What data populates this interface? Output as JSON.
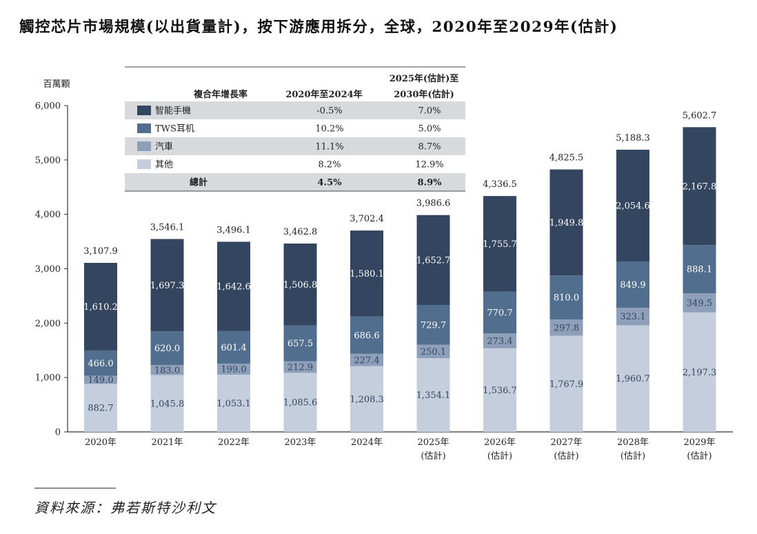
{
  "title": "觸控芯片市場規模(以出貨量計)，按下游應用拆分，全球，2020年至2029年(估計)",
  "source": "資料來源：弗若斯特沙利文",
  "colors": {
    "smartphone": "#33455f",
    "tws": "#526e8f",
    "auto": "#8e9fba",
    "other": "#c4cedc",
    "table_band": "#d7d9dc",
    "axis": "#333333"
  },
  "chart_data": {
    "type": "bar",
    "stacked": true,
    "ylabel": "百萬顆",
    "ylim": [
      0,
      6000
    ],
    "yticks": [
      0,
      1000,
      2000,
      3000,
      4000,
      5000,
      6000
    ],
    "ytick_labels": [
      "0",
      "1,000",
      "2,000",
      "3,000",
      "4,000",
      "5,000",
      "6,000"
    ],
    "categories": [
      [
        "2020年"
      ],
      [
        "2021年"
      ],
      [
        "2022年"
      ],
      [
        "2023年"
      ],
      [
        "2024年"
      ],
      [
        "2025年",
        "(估計)"
      ],
      [
        "2026年",
        "(估計)"
      ],
      [
        "2027年",
        "(估計)"
      ],
      [
        "2028年",
        "(估計)"
      ],
      [
        "2029年",
        "(估計)"
      ]
    ],
    "series": [
      {
        "name": "其他",
        "key": "other",
        "values": [
          882.7,
          1045.8,
          1053.1,
          1085.6,
          1208.3,
          1354.1,
          1536.7,
          1767.9,
          1960.7,
          2197.3
        ],
        "labels": [
          "882.7",
          "1,045.8",
          "1,053.1",
          "1,085.6",
          "1,208.3",
          "1,354.1",
          "1,536.7",
          "1,767.9",
          "1,960.7",
          "2,197.3"
        ]
      },
      {
        "name": "汽車",
        "key": "auto",
        "values": [
          149.0,
          183.0,
          199.0,
          212.9,
          227.4,
          250.1,
          273.4,
          297.8,
          323.1,
          349.5
        ],
        "labels": [
          "149.0",
          "183.0",
          "199.0",
          "212.9",
          "227.4",
          "250.1",
          "273.4",
          "297.8",
          "323.1",
          "349.5"
        ]
      },
      {
        "name": "TWS耳机",
        "key": "tws",
        "values": [
          466.0,
          620.0,
          601.4,
          657.5,
          686.6,
          729.7,
          770.7,
          810.0,
          849.9,
          888.1
        ],
        "labels": [
          "466.0",
          "620.0",
          "601.4",
          "657.5",
          "686.6",
          "729.7",
          "770.7",
          "810.0",
          "849.9",
          "888.1"
        ]
      },
      {
        "name": "智能手機",
        "key": "smartphone",
        "values": [
          1610.2,
          1697.3,
          1642.6,
          1506.8,
          1580.1,
          1652.7,
          1755.7,
          1949.8,
          2054.6,
          2167.8
        ],
        "labels": [
          "1,610.2",
          "1,697.3",
          "1,642.6",
          "1,506.8",
          "1,580.1",
          "1,652.7",
          "1,755.7",
          "1,949.8",
          "2,054.6",
          "2,167.8"
        ]
      }
    ],
    "totals": [
      3107.9,
      3546.1,
      3496.1,
      3462.8,
      3702.4,
      3986.6,
      4336.5,
      4825.5,
      5188.3,
      5602.7
    ],
    "total_labels": [
      "3,107.9",
      "3,546.1",
      "3,496.1",
      "3,462.8",
      "3,702.4",
      "3,986.6",
      "4,336.5",
      "4,825.5",
      "5,188.3",
      "5,602.7"
    ],
    "cagr_table": {
      "header": [
        "複合年增長率",
        "2020年至2024年",
        [
          "2025年(估計)至",
          "2030年(估計)"
        ]
      ],
      "rows": [
        {
          "name": "智能手機",
          "key": "smartphone",
          "a": "-0.5%",
          "b": "7.0%"
        },
        {
          "name": "TWS耳机",
          "key": "tws",
          "a": "10.2%",
          "b": "5.0%"
        },
        {
          "name": "汽車",
          "key": "auto",
          "a": "11.1%",
          "b": "8.7%"
        },
        {
          "name": "其他",
          "key": "other",
          "a": "8.2%",
          "b": "12.9%"
        },
        {
          "name": "總計",
          "key": null,
          "a": "4.5%",
          "b": "8.9%",
          "bold": true
        }
      ]
    }
  }
}
